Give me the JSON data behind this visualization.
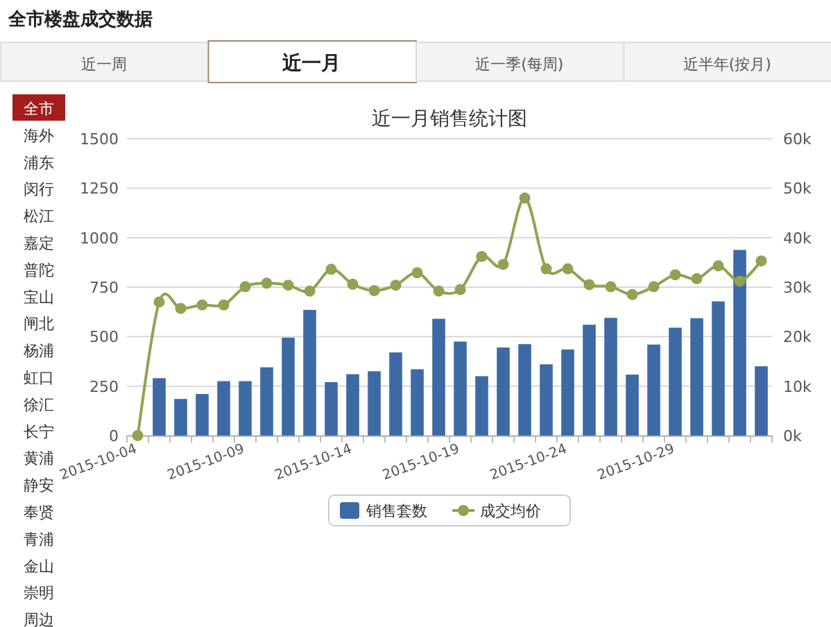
{
  "chart_data": {
    "type": "bar",
    "title": "近一月销售统计图",
    "categories": [
      "2015-10-04",
      null,
      null,
      null,
      null,
      "2015-10-09",
      null,
      null,
      null,
      null,
      "2015-10-14",
      null,
      null,
      null,
      null,
      "2015-10-19",
      null,
      null,
      null,
      null,
      "2015-10-24",
      null,
      null,
      null,
      null,
      "2015-10-29",
      null,
      null,
      null,
      null
    ],
    "series": [
      {
        "name": "销售套数",
        "color": "#3d6aa5",
        "values": [
          null,
          290,
          185,
          210,
          275,
          275,
          345,
          495,
          635,
          270,
          310,
          325,
          420,
          335,
          590,
          475,
          300,
          445,
          462,
          360,
          435,
          560,
          595,
          308,
          460,
          545,
          593,
          678,
          938,
          350
        ]
      },
      {
        "name": "成交均价",
        "type": "line",
        "axis": "y2",
        "color": "#8fa352",
        "marker": "circle",
        "values": [
          0,
          27.0,
          25.7,
          26.4,
          26.4,
          30.1,
          30.8,
          30.4,
          29.2,
          33.6,
          30.6,
          29.3,
          30.4,
          32.9,
          29.2,
          29.5,
          36.2,
          34.6,
          48.0,
          33.7,
          33.7,
          30.5,
          30.1,
          28.5,
          30.1,
          32.5,
          31.7,
          34.3,
          31.2,
          35.3
        ]
      }
    ],
    "ylim": [
      0,
      1500
    ],
    "yticks": [
      0,
      250,
      500,
      750,
      1000,
      1250,
      1500
    ],
    "y2lim": [
      0,
      60
    ],
    "y2ticks": [
      {
        "value": 0,
        "label": "0k"
      },
      {
        "value": 10,
        "label": "10k"
      },
      {
        "value": 20,
        "label": "20k"
      },
      {
        "value": 30,
        "label": "30k"
      },
      {
        "value": 40,
        "label": "40k"
      },
      {
        "value": 50,
        "label": "50k"
      },
      {
        "value": 60,
        "label": "60k"
      }
    ],
    "grid": "y",
    "legend": "bottom",
    "annotations": [
      "全市楼盘成交数据",
      "近一周",
      "近一月",
      "近一季(每周)",
      "近半年(按月)",
      "全市",
      "海外",
      "浦东",
      "闵行",
      "松江",
      "嘉定",
      "普陀",
      "宝山",
      "闸北",
      "杨浦",
      "虹口",
      "徐汇",
      "长宁",
      "黄浦",
      "静安",
      "奉贤",
      "青浦",
      "金山",
      "崇明",
      "周边"
    ]
  }
}
